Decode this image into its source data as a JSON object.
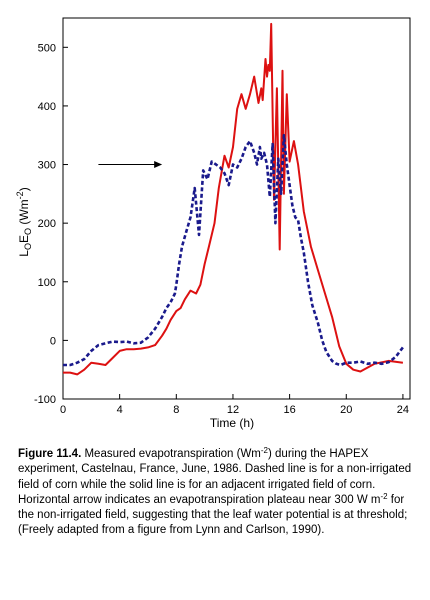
{
  "chart_data": {
    "type": "line",
    "xlabel": "Time (h)",
    "ylabel": {
      "main": "L",
      "sub1": "O",
      "mid": "E",
      "sub2": "O",
      "unit_open": " (Wm",
      "unit_sup": "-2",
      "unit_close": ")"
    },
    "xlim": [
      0,
      24.5
    ],
    "ylim": [
      -100,
      550
    ],
    "x_ticks": [
      0,
      4,
      8,
      12,
      16,
      20,
      24
    ],
    "y_ticks": [
      -100,
      0,
      100,
      200,
      300,
      400,
      500
    ],
    "x_tick_labels": [
      "0",
      "4",
      "8",
      "12",
      "16",
      "20",
      "24"
    ],
    "y_tick_labels": [
      "-100",
      "0",
      "100",
      "200",
      "300",
      "400",
      "500"
    ],
    "grid": false,
    "annotation": {
      "type": "arrow",
      "from": [
        2.5,
        300
      ],
      "to": [
        7,
        300
      ],
      "text": ""
    },
    "series": [
      {
        "style": "solid",
        "color": "#dd1111",
        "x": [
          0,
          0.5,
          1.0,
          1.5,
          2.0,
          2.5,
          3.0,
          3.5,
          4.0,
          4.5,
          5.0,
          5.5,
          6.0,
          6.5,
          7.0,
          7.3,
          7.6,
          8.0,
          8.3,
          8.6,
          9.0,
          9.4,
          9.7,
          10.0,
          10.3,
          10.7,
          11.0,
          11.4,
          11.7,
          12.0,
          12.3,
          12.6,
          12.9,
          13.2,
          13.5,
          13.8,
          14.0,
          14.1,
          14.3,
          14.4,
          14.5,
          14.6,
          14.7,
          14.9,
          15.1,
          15.3,
          15.5,
          15.6,
          15.8,
          16.0,
          16.3,
          16.6,
          17.0,
          17.5,
          18.0,
          18.5,
          19.0,
          19.5,
          20.0,
          20.5,
          21.0,
          22.0,
          23.0,
          24.0
        ],
        "y": [
          -55,
          -55,
          -58,
          -50,
          -38,
          -40,
          -42,
          -30,
          -18,
          -15,
          -15,
          -14,
          -12,
          -8,
          8,
          20,
          35,
          50,
          55,
          70,
          85,
          80,
          95,
          130,
          160,
          200,
          260,
          315,
          295,
          330,
          395,
          420,
          395,
          420,
          450,
          405,
          430,
          410,
          480,
          450,
          470,
          460,
          540,
          240,
          430,
          155,
          460,
          250,
          420,
          305,
          340,
          300,
          220,
          160,
          120,
          80,
          40,
          -10,
          -40,
          -50,
          -53,
          -40,
          -35,
          -38
        ]
      },
      {
        "style": "dashed",
        "color": "#1a1a8c",
        "x": [
          0,
          0.5,
          1.0,
          1.5,
          2.0,
          2.5,
          3.0,
          3.5,
          4.0,
          4.5,
          5.0,
          5.5,
          6.0,
          6.5,
          7.0,
          7.3,
          7.6,
          7.9,
          8.0,
          8.2,
          8.4,
          8.7,
          9.0,
          9.3,
          9.6,
          9.9,
          10.2,
          10.5,
          10.8,
          11.1,
          11.4,
          11.7,
          12.0,
          12.3,
          12.6,
          12.9,
          13.2,
          13.5,
          13.7,
          13.9,
          14.0,
          14.2,
          14.4,
          14.6,
          14.8,
          15.0,
          15.2,
          15.4,
          15.6,
          15.8,
          16.0,
          16.2,
          16.4,
          16.6,
          16.8,
          17.0,
          17.3,
          17.6,
          18.0,
          18.3,
          18.6,
          19.0,
          19.3,
          19.6,
          20.0,
          20.5,
          21.0,
          21.5,
          22.0,
          22.5,
          23.0,
          23.5,
          24.0
        ],
        "y": [
          -42,
          -42,
          -38,
          -32,
          -18,
          -8,
          -5,
          -2,
          -3,
          -2,
          -5,
          -4,
          5,
          20,
          40,
          55,
          65,
          80,
          95,
          130,
          160,
          185,
          210,
          260,
          180,
          290,
          275,
          305,
          300,
          295,
          285,
          265,
          300,
          295,
          310,
          330,
          340,
          320,
          300,
          330,
          310,
          320,
          300,
          245,
          335,
          200,
          310,
          250,
          350,
          300,
          265,
          230,
          210,
          205,
          175,
          150,
          100,
          60,
          30,
          0,
          -20,
          -35,
          -40,
          -42,
          -38,
          -38,
          -36,
          -40,
          -38,
          -40,
          -37,
          -28,
          -12
        ]
      }
    ]
  },
  "caption": {
    "label": "Figure 11.4.",
    "p1": " Measured evapotranspiration (Wm",
    "sup1": "-2",
    "p2": ") during the HAPEX experiment, Castelnau, France, June, 1986. Dashed line is for a non-irrigated field of corn while the solid line is for an adjacent irrigated field of corn. Horizontal arrow indicates an evapotranspiration plateau near 300 W m",
    "sup2": "-2",
    "p3": " for the non-irrigated field, suggesting that the leaf water potential is at threshold; (Freely adapted from a figure from Lynn and Carlson, 1990)."
  }
}
